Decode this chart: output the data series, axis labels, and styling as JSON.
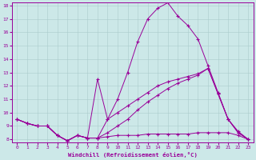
{
  "xlabel": "Windchill (Refroidissement éolien,°C)",
  "xlim": [
    -0.5,
    23.5
  ],
  "ylim": [
    7.8,
    18.2
  ],
  "xticks": [
    0,
    1,
    2,
    3,
    4,
    5,
    6,
    7,
    8,
    9,
    10,
    11,
    12,
    13,
    14,
    15,
    16,
    17,
    18,
    19,
    20,
    21,
    22,
    23
  ],
  "yticks": [
    8,
    9,
    10,
    11,
    12,
    13,
    14,
    15,
    16,
    17,
    18
  ],
  "background_color": "#cce8e8",
  "grid_color": "#aacccc",
  "line_color": "#990099",
  "lines": [
    {
      "x": [
        0,
        1,
        2,
        3,
        4,
        5,
        6,
        7,
        8,
        9,
        10,
        11,
        12,
        13,
        14,
        15,
        16,
        17,
        18,
        19,
        20,
        21,
        22,
        23
      ],
      "y": [
        9.5,
        9.2,
        9.0,
        9.0,
        8.3,
        7.9,
        8.3,
        8.1,
        8.1,
        9.5,
        11.0,
        13.0,
        15.3,
        17.0,
        17.8,
        18.2,
        17.2,
        16.5,
        15.5,
        13.5,
        11.5,
        9.5,
        8.6,
        8.0
      ]
    },
    {
      "x": [
        0,
        1,
        2,
        3,
        4,
        5,
        6,
        7,
        8,
        9,
        10,
        11,
        12,
        13,
        14,
        15,
        16,
        17,
        18,
        19,
        20,
        21,
        22,
        23
      ],
      "y": [
        9.5,
        9.2,
        9.0,
        9.0,
        8.3,
        7.9,
        8.3,
        8.1,
        8.1,
        8.5,
        9.0,
        9.5,
        10.2,
        10.8,
        11.3,
        11.8,
        12.2,
        12.5,
        12.8,
        13.3,
        11.4,
        9.5,
        8.5,
        8.0
      ]
    },
    {
      "x": [
        0,
        1,
        2,
        3,
        4,
        5,
        6,
        7,
        8,
        9,
        10,
        11,
        12,
        13,
        14,
        15,
        16,
        17,
        18,
        19,
        20,
        21,
        22,
        23
      ],
      "y": [
        9.5,
        9.2,
        9.0,
        9.0,
        8.3,
        7.9,
        8.3,
        8.1,
        12.5,
        9.5,
        10.0,
        10.5,
        11.0,
        11.5,
        12.0,
        12.3,
        12.5,
        12.7,
        12.9,
        13.3,
        11.4,
        9.5,
        8.5,
        8.0
      ]
    },
    {
      "x": [
        0,
        1,
        2,
        3,
        4,
        5,
        6,
        7,
        8,
        9,
        10,
        11,
        12,
        13,
        14,
        15,
        16,
        17,
        18,
        19,
        20,
        21,
        22,
        23
      ],
      "y": [
        9.5,
        9.2,
        9.0,
        9.0,
        8.3,
        7.9,
        8.3,
        8.1,
        8.1,
        8.2,
        8.3,
        8.3,
        8.3,
        8.4,
        8.4,
        8.4,
        8.4,
        8.4,
        8.5,
        8.5,
        8.5,
        8.5,
        8.3,
        8.0
      ]
    }
  ]
}
